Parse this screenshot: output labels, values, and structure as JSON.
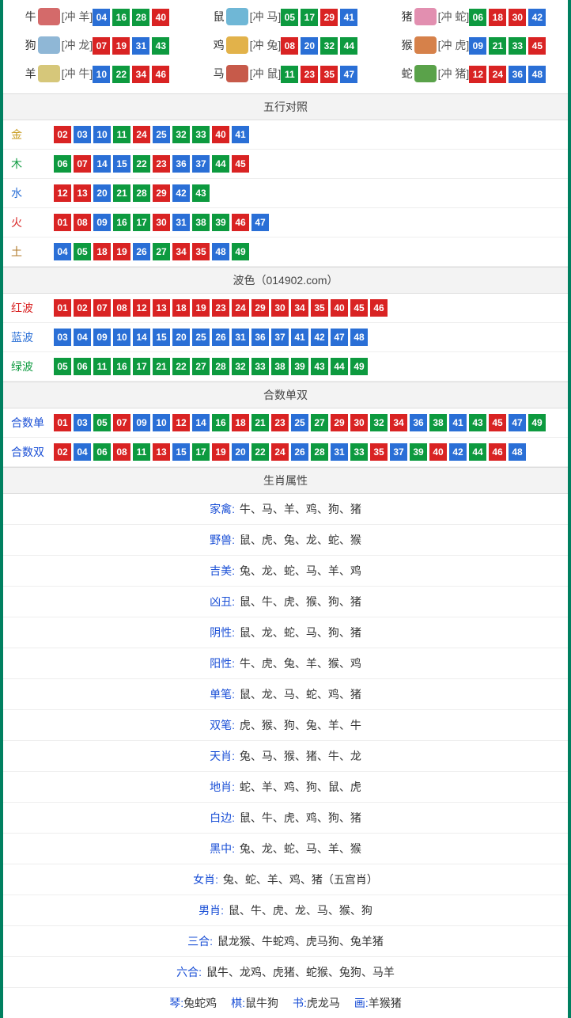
{
  "palette": {
    "red": "#d92323",
    "blue": "#2a6fd6",
    "green": "#0d9a3f",
    "border_teal": "#008060",
    "header_bg": "#f3f3f3",
    "header_text": "#444444",
    "row_border": "#eeeeee",
    "label_blue": "#1a4fd6",
    "text": "#333333"
  },
  "zodiac_icon_colors": {
    "牛": "#d46a6a",
    "鼠": "#6fb7d6",
    "猪": "#e28fb0",
    "狗": "#8fb7d6",
    "鸡": "#e2b24a",
    "猴": "#d6814a",
    "羊": "#d6c77a",
    "马": "#c75a4a",
    "蛇": "#5aa24a"
  },
  "zodiac": [
    {
      "name": "牛",
      "conflict": "[冲 羊]",
      "numbers": [
        "04",
        "16",
        "28",
        "40"
      ],
      "colors": [
        "blue",
        "green",
        "green",
        "red"
      ]
    },
    {
      "name": "鼠",
      "conflict": "[冲 马]",
      "numbers": [
        "05",
        "17",
        "29",
        "41"
      ],
      "colors": [
        "green",
        "green",
        "red",
        "blue"
      ]
    },
    {
      "name": "猪",
      "conflict": "[冲 蛇]",
      "numbers": [
        "06",
        "18",
        "30",
        "42"
      ],
      "colors": [
        "green",
        "red",
        "red",
        "blue"
      ]
    },
    {
      "name": "狗",
      "conflict": "[冲 龙]",
      "numbers": [
        "07",
        "19",
        "31",
        "43"
      ],
      "colors": [
        "red",
        "red",
        "blue",
        "green"
      ]
    },
    {
      "name": "鸡",
      "conflict": "[冲 兔]",
      "numbers": [
        "08",
        "20",
        "32",
        "44"
      ],
      "colors": [
        "red",
        "blue",
        "green",
        "green"
      ]
    },
    {
      "name": "猴",
      "conflict": "[冲 虎]",
      "numbers": [
        "09",
        "21",
        "33",
        "45"
      ],
      "colors": [
        "blue",
        "green",
        "green",
        "red"
      ]
    },
    {
      "name": "羊",
      "conflict": "[冲 牛]",
      "numbers": [
        "10",
        "22",
        "34",
        "46"
      ],
      "colors": [
        "blue",
        "green",
        "red",
        "red"
      ]
    },
    {
      "name": "马",
      "conflict": "[冲 鼠]",
      "numbers": [
        "11",
        "23",
        "35",
        "47"
      ],
      "colors": [
        "green",
        "red",
        "red",
        "blue"
      ]
    },
    {
      "name": "蛇",
      "conflict": "[冲 猪]",
      "numbers": [
        "12",
        "24",
        "36",
        "48"
      ],
      "colors": [
        "red",
        "red",
        "blue",
        "blue"
      ]
    }
  ],
  "sections": {
    "wuxing": {
      "title": "五行对照",
      "label_colors": {
        "金": "#c89b1e",
        "木": "#0d9a3f",
        "水": "#2a6fd6",
        "火": "#d92323",
        "土": "#b07a2a"
      },
      "rows": [
        {
          "label": "金",
          "numbers": [
            "02",
            "03",
            "10",
            "11",
            "24",
            "25",
            "32",
            "33",
            "40",
            "41"
          ],
          "colors": [
            "red",
            "blue",
            "blue",
            "green",
            "red",
            "blue",
            "green",
            "green",
            "red",
            "blue"
          ]
        },
        {
          "label": "木",
          "numbers": [
            "06",
            "07",
            "14",
            "15",
            "22",
            "23",
            "36",
            "37",
            "44",
            "45"
          ],
          "colors": [
            "green",
            "red",
            "blue",
            "blue",
            "green",
            "red",
            "blue",
            "blue",
            "green",
            "red"
          ]
        },
        {
          "label": "水",
          "numbers": [
            "12",
            "13",
            "20",
            "21",
            "28",
            "29",
            "42",
            "43"
          ],
          "colors": [
            "red",
            "red",
            "blue",
            "green",
            "green",
            "red",
            "blue",
            "green"
          ]
        },
        {
          "label": "火",
          "numbers": [
            "01",
            "08",
            "09",
            "16",
            "17",
            "30",
            "31",
            "38",
            "39",
            "46",
            "47"
          ],
          "colors": [
            "red",
            "red",
            "blue",
            "green",
            "green",
            "red",
            "blue",
            "green",
            "green",
            "red",
            "blue"
          ]
        },
        {
          "label": "土",
          "numbers": [
            "04",
            "05",
            "18",
            "19",
            "26",
            "27",
            "34",
            "35",
            "48",
            "49"
          ],
          "colors": [
            "blue",
            "green",
            "red",
            "red",
            "blue",
            "green",
            "red",
            "red",
            "blue",
            "green"
          ]
        }
      ]
    },
    "bose": {
      "title": "波色（014902.com）",
      "label_colors": {
        "红波": "#d92323",
        "蓝波": "#2a6fd6",
        "绿波": "#0d9a3f"
      },
      "rows": [
        {
          "label": "红波",
          "numbers": [
            "01",
            "02",
            "07",
            "08",
            "12",
            "13",
            "18",
            "19",
            "23",
            "24",
            "29",
            "30",
            "34",
            "35",
            "40",
            "45",
            "46"
          ],
          "colors": [
            "red",
            "red",
            "red",
            "red",
            "red",
            "red",
            "red",
            "red",
            "red",
            "red",
            "red",
            "red",
            "red",
            "red",
            "red",
            "red",
            "red"
          ]
        },
        {
          "label": "蓝波",
          "numbers": [
            "03",
            "04",
            "09",
            "10",
            "14",
            "15",
            "20",
            "25",
            "26",
            "31",
            "36",
            "37",
            "41",
            "42",
            "47",
            "48"
          ],
          "colors": [
            "blue",
            "blue",
            "blue",
            "blue",
            "blue",
            "blue",
            "blue",
            "blue",
            "blue",
            "blue",
            "blue",
            "blue",
            "blue",
            "blue",
            "blue",
            "blue"
          ]
        },
        {
          "label": "绿波",
          "numbers": [
            "05",
            "06",
            "11",
            "16",
            "17",
            "21",
            "22",
            "27",
            "28",
            "32",
            "33",
            "38",
            "39",
            "43",
            "44",
            "49"
          ],
          "colors": [
            "green",
            "green",
            "green",
            "green",
            "green",
            "green",
            "green",
            "green",
            "green",
            "green",
            "green",
            "green",
            "green",
            "green",
            "green",
            "green"
          ]
        }
      ]
    },
    "heshu": {
      "title": "合数单双",
      "label_colors": {
        "合数单": "#1a4fd6",
        "合数双": "#1a4fd6"
      },
      "rows": [
        {
          "label": "合数单",
          "numbers": [
            "01",
            "03",
            "05",
            "07",
            "09",
            "10",
            "12",
            "14",
            "16",
            "18",
            "21",
            "23",
            "25",
            "27",
            "29",
            "30",
            "32",
            "34",
            "36",
            "38",
            "41",
            "43",
            "45",
            "47",
            "49"
          ],
          "colors": [
            "red",
            "blue",
            "green",
            "red",
            "blue",
            "blue",
            "red",
            "blue",
            "green",
            "red",
            "green",
            "red",
            "blue",
            "green",
            "red",
            "red",
            "green",
            "red",
            "blue",
            "green",
            "blue",
            "green",
            "red",
            "blue",
            "green"
          ]
        },
        {
          "label": "合数双",
          "numbers": [
            "02",
            "04",
            "06",
            "08",
            "11",
            "13",
            "15",
            "17",
            "19",
            "20",
            "22",
            "24",
            "26",
            "28",
            "31",
            "33",
            "35",
            "37",
            "39",
            "40",
            "42",
            "44",
            "46",
            "48"
          ],
          "colors": [
            "red",
            "blue",
            "green",
            "red",
            "green",
            "red",
            "blue",
            "green",
            "red",
            "blue",
            "green",
            "red",
            "blue",
            "green",
            "blue",
            "green",
            "red",
            "blue",
            "green",
            "red",
            "blue",
            "green",
            "red",
            "blue"
          ]
        }
      ]
    }
  },
  "attributes": {
    "title": "生肖属性",
    "rows": [
      {
        "label": "家禽:",
        "value": "牛、马、羊、鸡、狗、猪"
      },
      {
        "label": "野兽:",
        "value": "鼠、虎、兔、龙、蛇、猴"
      },
      {
        "label": "吉美:",
        "value": "兔、龙、蛇、马、羊、鸡"
      },
      {
        "label": "凶丑:",
        "value": "鼠、牛、虎、猴、狗、猪"
      },
      {
        "label": "阴性:",
        "value": "鼠、龙、蛇、马、狗、猪"
      },
      {
        "label": "阳性:",
        "value": "牛、虎、兔、羊、猴、鸡"
      },
      {
        "label": "单笔:",
        "value": "鼠、龙、马、蛇、鸡、猪"
      },
      {
        "label": "双笔:",
        "value": "虎、猴、狗、兔、羊、牛"
      },
      {
        "label": "天肖:",
        "value": "兔、马、猴、猪、牛、龙"
      },
      {
        "label": "地肖:",
        "value": "蛇、羊、鸡、狗、鼠、虎"
      },
      {
        "label": "白边:",
        "value": "鼠、牛、虎、鸡、狗、猪"
      },
      {
        "label": "黑中:",
        "value": "兔、龙、蛇、马、羊、猴"
      },
      {
        "label": "女肖:",
        "value": "兔、蛇、羊、鸡、猪（五宫肖）"
      },
      {
        "label": "男肖:",
        "value": "鼠、牛、虎、龙、马、猴、狗"
      },
      {
        "label": "三合:",
        "value": "鼠龙猴、牛蛇鸡、虎马狗、兔羊猪"
      },
      {
        "label": "六合:",
        "value": "鼠牛、龙鸡、虎猪、蛇猴、兔狗、马羊"
      }
    ]
  },
  "four_col": [
    {
      "k": "琴:",
      "v": "兔蛇鸡"
    },
    {
      "k": "棋:",
      "v": "鼠牛狗"
    },
    {
      "k": "书:",
      "v": "虎龙马"
    },
    {
      "k": "画:",
      "v": "羊猴猪"
    }
  ]
}
